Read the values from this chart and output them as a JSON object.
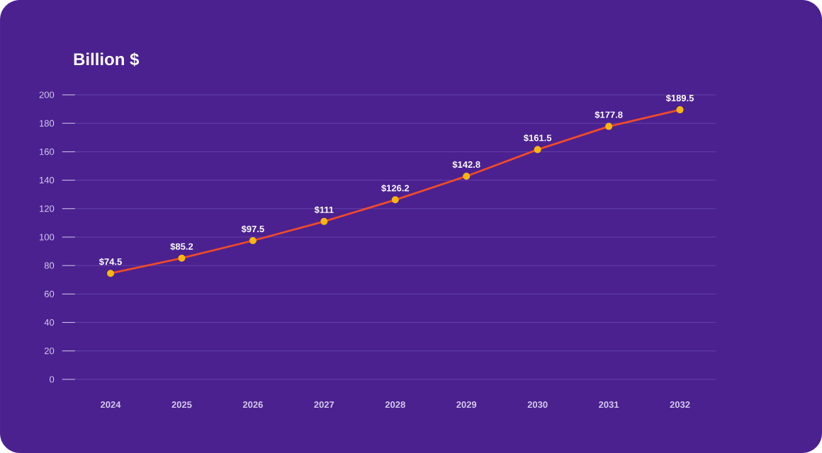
{
  "chart_data": {
    "type": "line",
    "title": "Billion $",
    "categories": [
      "2024",
      "2025",
      "2026",
      "2027",
      "2028",
      "2029",
      "2030",
      "2031",
      "2032"
    ],
    "series": [
      {
        "color": "#ee4b2b",
        "values": [
          74.5,
          85.2,
          97.5,
          111,
          126.2,
          142.8,
          161.5,
          177.8,
          189.5
        ],
        "value_labels": [
          "$74.5",
          "$85.2",
          "$97.5",
          "$111",
          "$126.2",
          "$142.8",
          "$161.5",
          "$177.8",
          "$189.5"
        ]
      }
    ],
    "ylim": [
      0,
      200
    ],
    "yticks": [
      0,
      20,
      40,
      60,
      80,
      100,
      120,
      140,
      160,
      180,
      200
    ],
    "grid": "y",
    "marker": "circle",
    "line_style": "solid"
  }
}
